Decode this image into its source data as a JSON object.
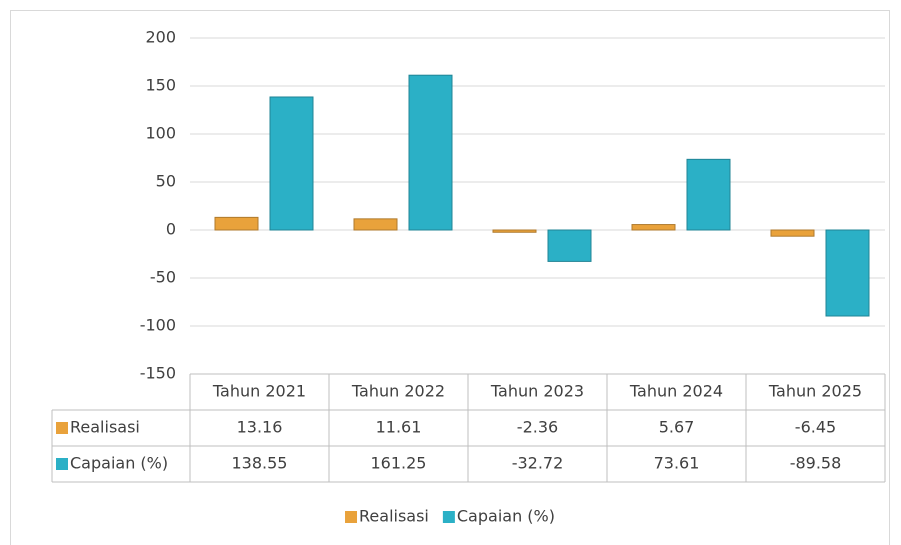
{
  "chart_data": {
    "type": "bar",
    "categories": [
      "Tahun 2021",
      "Tahun 2022",
      "Tahun 2023",
      "Tahun 2024",
      "Tahun 2025"
    ],
    "series": [
      {
        "name": "Realisasi",
        "color": "#e9a23b",
        "values": [
          13.16,
          11.61,
          -2.36,
          5.67,
          -6.45
        ]
      },
      {
        "name": "Capaian (%)",
        "color": "#2bb0c6",
        "values": [
          138.55,
          161.25,
          -32.72,
          73.61,
          -89.58
        ]
      }
    ],
    "ylim": [
      -150,
      200
    ],
    "yticks": [
      -150,
      -100,
      -50,
      0,
      50,
      100,
      150,
      200
    ],
    "grid": true,
    "legend": "bottom",
    "data_table": true
  }
}
